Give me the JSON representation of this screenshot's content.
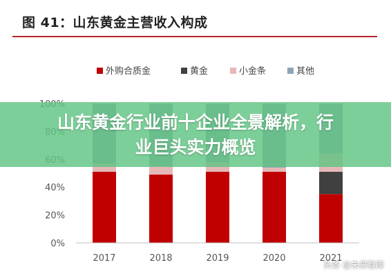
{
  "figure": {
    "title": "图 41：山东黄金主营收入构成"
  },
  "overlay": {
    "banner_line1": "山东黄金行业前十企业全景解析，行",
    "banner_line2": "业巨头实力概览",
    "banner_color": "#60c482",
    "watermark": "头条 @未来智库"
  },
  "chart_data": {
    "type": "bar",
    "stacked": true,
    "categories": [
      "2017",
      "2018",
      "2019",
      "2020",
      "2021"
    ],
    "series": [
      {
        "name": "外购合质金",
        "color": "#c00000",
        "values": [
          51,
          49,
          51,
          51,
          35
        ]
      },
      {
        "name": "黄金",
        "color": "#404040",
        "values": [
          0,
          0,
          0,
          0,
          16
        ]
      },
      {
        "name": "小金条",
        "color": "#e6b8b7",
        "values": [
          6,
          6,
          7,
          3,
          13
        ]
      },
      {
        "name": "其他",
        "color": "#8fa3b5",
        "values": [
          43,
          45,
          42,
          46,
          36
        ]
      }
    ],
    "legend_position": "top",
    "y_tick_labels": [
      "0%",
      "20%",
      "40%",
      "60%",
      "80%",
      "100%"
    ],
    "ylim": [
      0,
      100
    ],
    "grid": false
  }
}
